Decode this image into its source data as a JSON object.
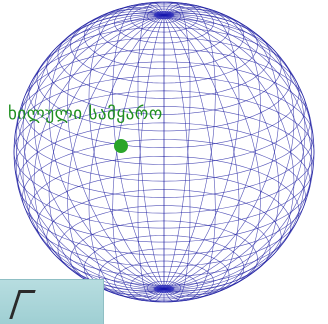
{
  "diagram": {
    "point_label": "ხილული სამყარო",
    "colors": {
      "wireframe": "#1a1aa0",
      "pole_fill": "#1010b8",
      "point": "#2aa52a",
      "label": "#1f8f1f",
      "thumbnail_bg": "#aad6da"
    }
  }
}
